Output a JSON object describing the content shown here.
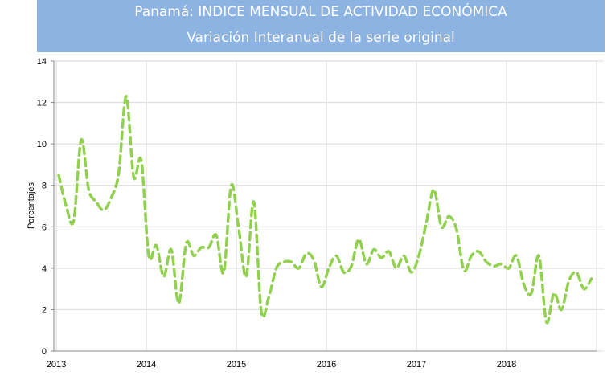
{
  "header": {
    "title": "Panamá: INDICE MENSUAL DE ACTIVIDAD ECONÓMICA",
    "subtitle": "Variación Interanual de la serie original"
  },
  "chart_data": {
    "type": "line",
    "title": "Panamá: INDICE MENSUAL DE ACTIVIDAD ECONÓMICA",
    "subtitle": "Variación Interanual de la serie original",
    "xlabel": "",
    "ylabel": "Porcentajes",
    "ylim": [
      0,
      14
    ],
    "yticks": [
      "0",
      "2",
      "4",
      "6",
      "8",
      "10",
      "12",
      "14"
    ],
    "xticks": [
      "2013",
      "2014",
      "2015",
      "2016",
      "2017",
      "2018"
    ],
    "grid": true,
    "line_color": "#92d050",
    "line_style": "dashed",
    "series": [
      {
        "values": [
          8.5,
          7.0,
          6.3,
          10.2,
          7.8,
          7.2,
          6.8,
          7.4,
          8.6,
          12.3,
          8.4,
          9.2,
          4.6,
          5.1,
          3.6,
          4.9,
          2.3,
          5.2,
          4.6,
          5.0,
          5.0,
          5.6,
          3.8,
          8.0,
          5.9,
          3.6,
          7.2,
          1.9,
          2.6,
          4.0,
          4.3,
          4.3,
          4.0,
          4.7,
          4.4,
          3.1,
          4.0,
          4.6,
          3.8,
          4.1,
          5.4,
          4.2,
          4.9,
          4.5,
          4.8,
          4.0,
          4.6,
          3.8,
          4.6,
          6.2,
          7.8,
          6.0,
          6.5,
          5.9,
          3.9,
          4.6,
          4.8,
          4.3,
          4.1,
          4.2,
          4.0,
          4.6,
          3.2,
          2.8,
          4.6,
          1.4,
          2.8,
          2.0,
          3.4,
          3.8,
          3.0,
          3.5
        ]
      }
    ]
  }
}
